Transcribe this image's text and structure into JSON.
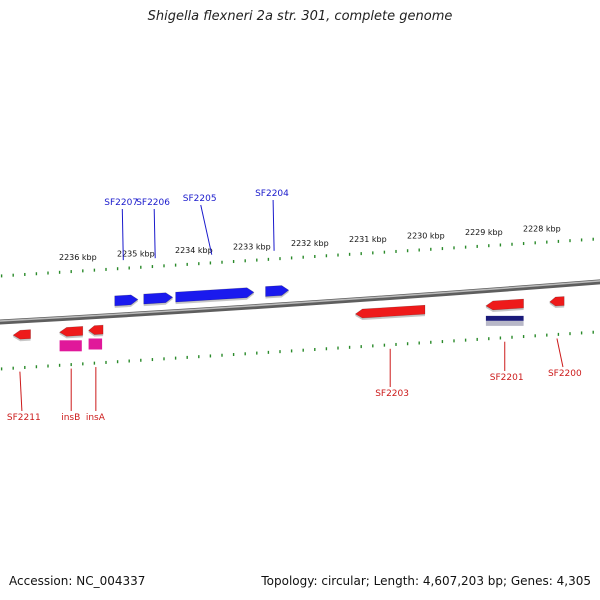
{
  "title": "Shigella flexneri 2a str. 301, complete genome",
  "footer": {
    "accession": "Accession: NC_004337",
    "summary": "Topology: circular; Length: 4,607,203 bp; Genes: 4,305"
  },
  "colors": {
    "forward_gene": "#1a1aee",
    "forward_label": "#1a1acc",
    "reverse_gene": "#ee1a1a",
    "reverse_label": "#cc1a1a",
    "insertion_element": "#e0189a",
    "special_feature": "#1a1a7a",
    "tick_mark": "#2a8a2a",
    "backbone": "#909090"
  },
  "scale": {
    "ticks": [
      {
        "label": "2236 kbp",
        "kbp": 2236
      },
      {
        "label": "2235 kbp",
        "kbp": 2235
      },
      {
        "label": "2234 kbp",
        "kbp": 2234
      },
      {
        "label": "2233 kbp",
        "kbp": 2233
      },
      {
        "label": "2232 kbp",
        "kbp": 2232
      },
      {
        "label": "2231 kbp",
        "kbp": 2231
      },
      {
        "label": "2230 kbp",
        "kbp": 2230
      },
      {
        "label": "2229 kbp",
        "kbp": 2229
      },
      {
        "label": "2228 kbp",
        "kbp": 2228
      }
    ]
  },
  "genes": {
    "forward": [
      {
        "label": "SF2207",
        "start_kbp": 2235.35,
        "end_kbp": 2234.95
      },
      {
        "label": "SF2206",
        "start_kbp": 2234.85,
        "end_kbp": 2234.35
      },
      {
        "label": "SF2205",
        "start_kbp": 2234.3,
        "end_kbp": 2232.95
      },
      {
        "label": "SF2204",
        "start_kbp": 2232.75,
        "end_kbp": 2232.35
      }
    ],
    "reverse": [
      {
        "label": "SF2211",
        "start_kbp": 2237.1,
        "end_kbp": 2236.8
      },
      {
        "label": "insB",
        "start_kbp": 2236.3,
        "end_kbp": 2235.9
      },
      {
        "label": "insA",
        "start_kbp": 2235.8,
        "end_kbp": 2235.55
      },
      {
        "label": "SF2203",
        "start_kbp": 2231.2,
        "end_kbp": 2230.0
      },
      {
        "label": "SF2201",
        "start_kbp": 2228.95,
        "end_kbp": 2228.3
      },
      {
        "label": "SF2200",
        "start_kbp": 2227.85,
        "end_kbp": 2227.6
      }
    ]
  }
}
